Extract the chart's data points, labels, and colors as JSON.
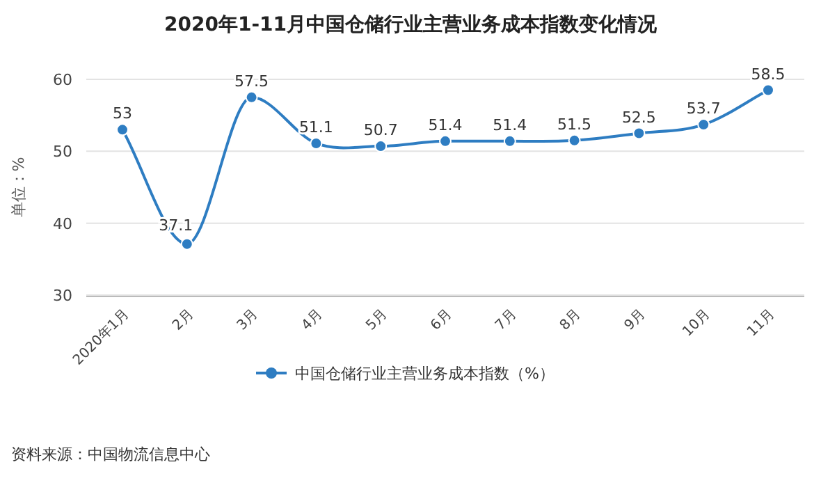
{
  "chart_data": {
    "type": "line",
    "title": "2020年1-11月中国仓储行业主营业务成本指数变化情况",
    "ylabel": "单位：%",
    "categories": [
      "2020年1月",
      "2月",
      "3月",
      "4月",
      "5月",
      "6月",
      "7月",
      "8月",
      "9月",
      "10月",
      "11月"
    ],
    "series": [
      {
        "name": "中国仓储行业主营业务成本指数（%）",
        "color": "#2e7dc2",
        "values": [
          53,
          37.1,
          57.5,
          51.1,
          50.7,
          51.4,
          51.4,
          51.5,
          52.5,
          53.7,
          58.5
        ]
      }
    ],
    "ylim": [
      30,
      60
    ],
    "yticks": [
      30,
      40,
      50,
      60
    ],
    "grid": "y",
    "legend": "bottom",
    "marker": "circle",
    "line_style": "solid",
    "data_labels": true,
    "annotations": [
      "资料来源：中国物流信息中心"
    ]
  }
}
